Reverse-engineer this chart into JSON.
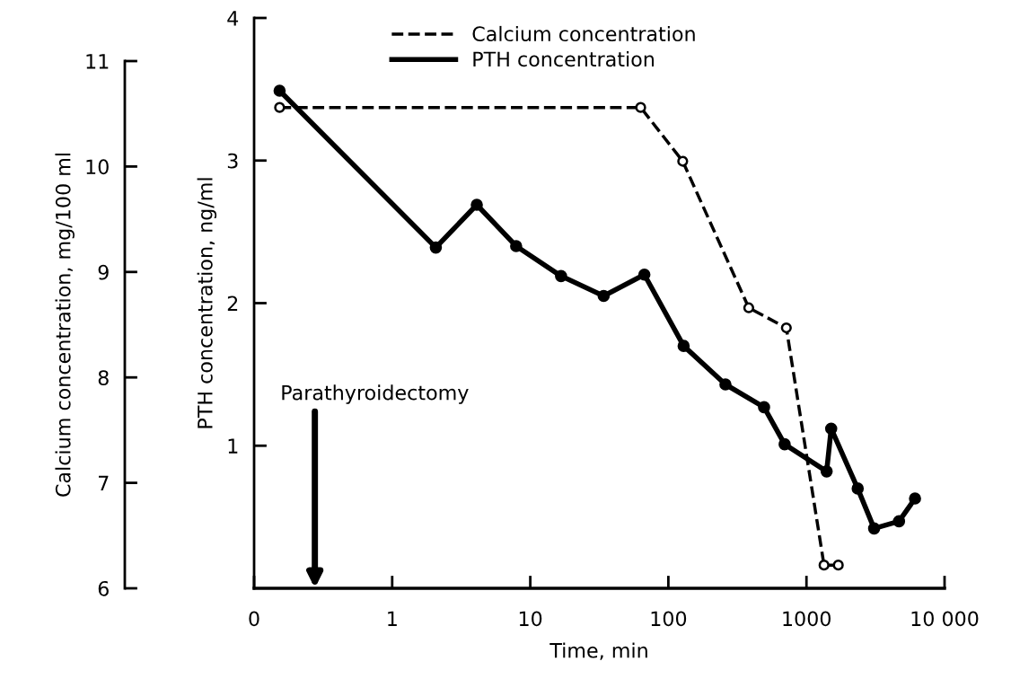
{
  "chart_data": {
    "type": "line",
    "xlabel": "Time, min",
    "ylabel": "PTH concentration, ng/ml",
    "y2label": "Calcium concentration, mg/100 ml",
    "log": "x",
    "xlim": [
      0.1,
      10000
    ],
    "xticks": [
      {
        "value": 0.1,
        "label": "0"
      },
      1,
      10,
      100,
      1000,
      {
        "value": 10000,
        "label": "10 000"
      }
    ],
    "ylim": [
      0,
      4
    ],
    "yticks": [
      1,
      2,
      3,
      4
    ],
    "y2lim": [
      6,
      11
    ],
    "y2ticks": [
      6,
      7,
      8,
      9,
      10,
      11
    ],
    "grid": false,
    "legend": "top",
    "marker": "circle",
    "series": [
      {
        "name": "Calcium concentration",
        "color": "#000000",
        "axis": "y2",
        "line_style": "dashed",
        "x": [
          0.153,
          63,
          127,
          382,
          715,
          1340,
          1700
        ],
        "values": [
          10.56,
          10.56,
          10.05,
          8.66,
          8.47,
          6.22,
          6.22
        ]
      },
      {
        "name": "PTH concentration",
        "color": "#000000",
        "line_style": "solid",
        "x": [
          0.153,
          2.07,
          4.1,
          7.9,
          16.7,
          34,
          67,
          129,
          259,
          493,
          695,
          1400,
          1510,
          2350,
          3090,
          4680,
          6110
        ],
        "values": [
          3.49,
          2.39,
          2.69,
          2.4,
          2.19,
          2.05,
          2.2,
          1.7,
          1.43,
          1.27,
          1.01,
          0.82,
          1.12,
          0.7,
          0.42,
          0.47,
          0.63
        ]
      }
    ],
    "annotations": [
      "Parathyroidectomy"
    ]
  }
}
